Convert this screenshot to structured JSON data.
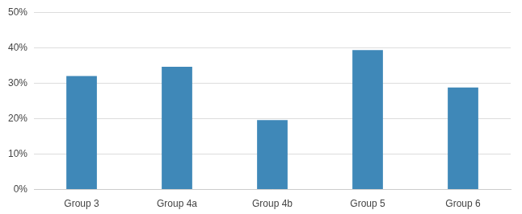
{
  "chart_data": {
    "type": "bar",
    "categories": [
      "Group 3",
      "Group 4a",
      "Group 4b",
      "Group 5",
      "Group 6"
    ],
    "values": [
      32,
      34.6,
      19.6,
      39.3,
      28.8
    ],
    "color": "#3f88b8",
    "ylim": [
      0,
      50
    ],
    "yticks": [
      {
        "value": 0,
        "label": "0%"
      },
      {
        "value": 10,
        "label": "10%"
      },
      {
        "value": 20,
        "label": "20%"
      },
      {
        "value": 30,
        "label": "30%"
      },
      {
        "value": 40,
        "label": "40%"
      },
      {
        "value": 50,
        "label": "50%"
      }
    ],
    "grid": true
  }
}
